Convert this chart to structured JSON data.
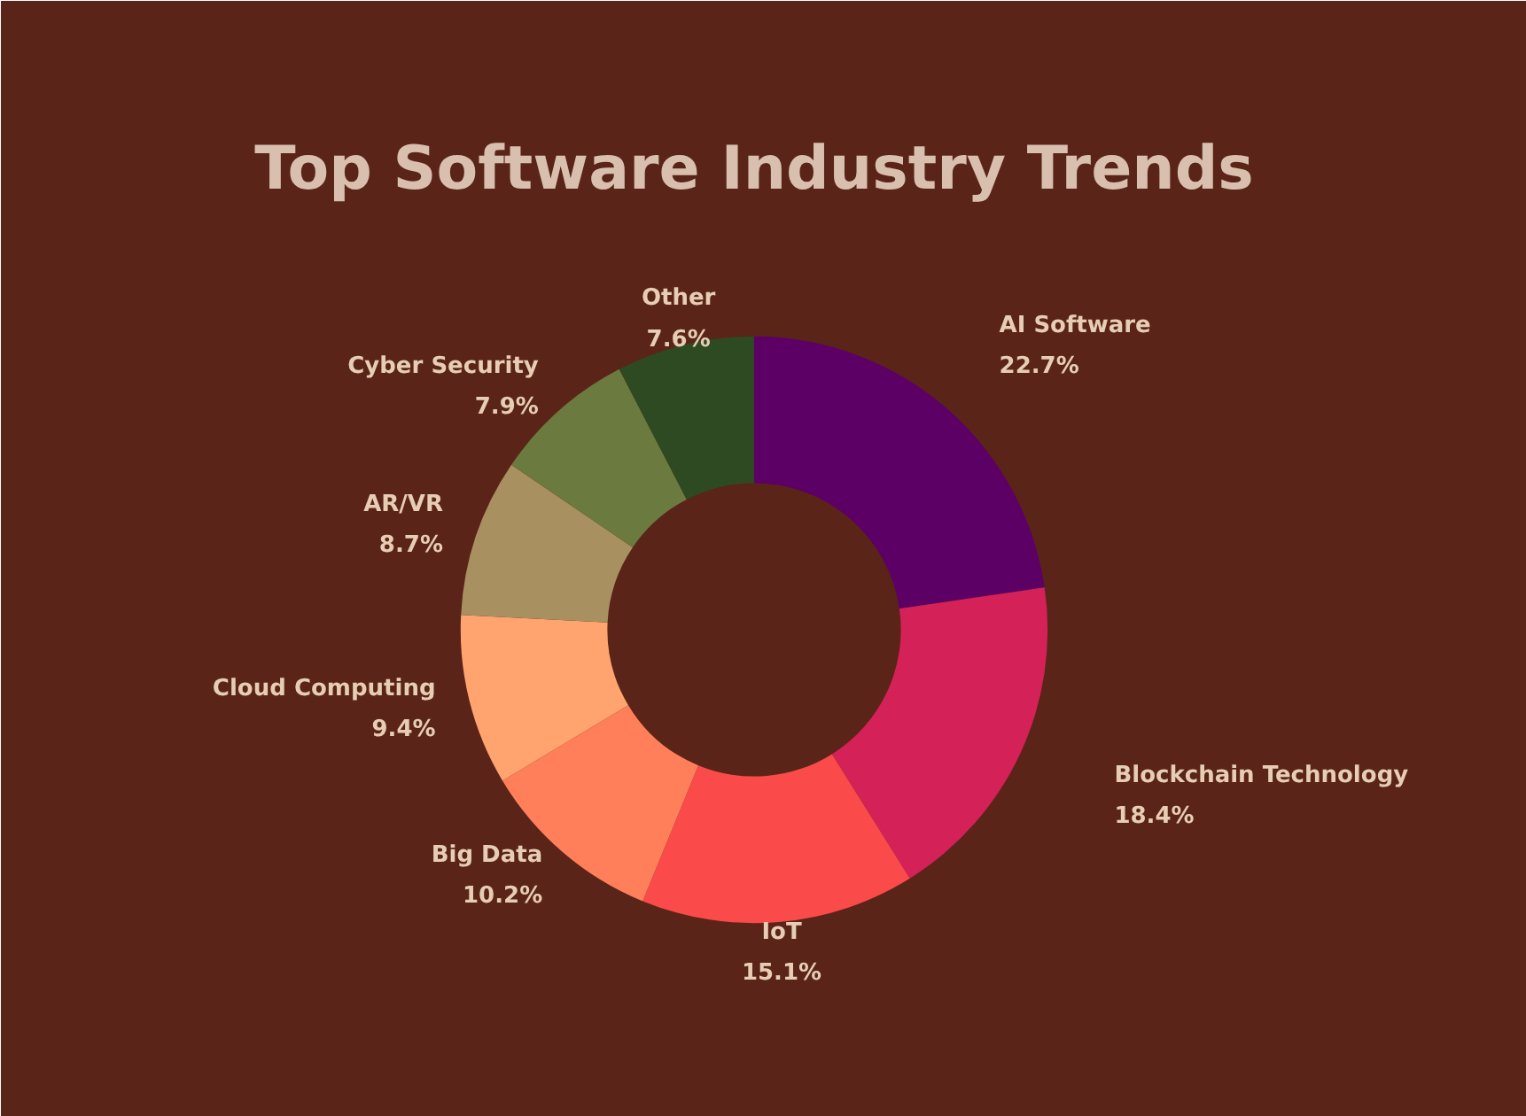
{
  "chart_data": {
    "type": "donut",
    "title": "Top Software Industry Trends",
    "categories": [
      "AI Software",
      "Blockchain Technology",
      "IoT",
      "Big Data",
      "Cloud Computing",
      "AR/VR",
      "Cyber Security",
      "Other"
    ],
    "values": [
      22.7,
      18.4,
      15.1,
      10.2,
      9.4,
      8.7,
      7.9,
      7.6
    ],
    "value_labels": [
      "22.7%",
      "18.4%",
      "15.1%",
      "10.2%",
      "9.4%",
      "8.7%",
      "7.9%",
      "7.6%"
    ],
    "colors": [
      "#5c0066",
      "#d42157",
      "#fa4a4a",
      "#ff7f5a",
      "#ffa46e",
      "#a89060",
      "#6b7a3e",
      "#2e4a22"
    ]
  }
}
